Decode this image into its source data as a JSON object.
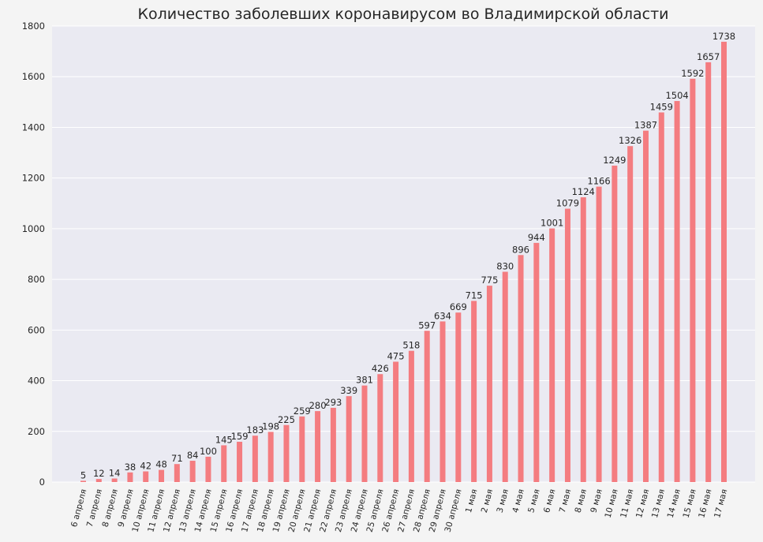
{
  "chart_data": {
    "type": "bar",
    "title": "Количество заболевших коронавирусом во Владимирской области",
    "xlabel": "",
    "ylabel": "",
    "ylim": [
      0,
      1800
    ],
    "yticks": [
      0,
      200,
      400,
      600,
      800,
      1000,
      1200,
      1400,
      1600,
      1800
    ],
    "grid": true,
    "categories": [
      "6 апреля",
      "7 апреля",
      "8 апреля",
      "9 апреля",
      "10 апреля",
      "11 апреля",
      "12 апреля",
      "13 апреля",
      "14 апреля",
      "15 апреля",
      "16 апреля",
      "17 апреля",
      "18 апреля",
      "19 апреля",
      "20 апреля",
      "21 апреля",
      "22 апреля",
      "23 апреля",
      "24 апреля",
      "25 апреля",
      "26 апреля",
      "27 апреля",
      "28 апреля",
      "29 апреля",
      "30 апреля",
      "1 мая",
      "2 мая",
      "3 мая",
      "4 мая",
      "5 мая",
      "6 мая",
      "7 мая",
      "8 мая",
      "9 мая",
      "10 мая",
      "11 мая",
      "12 мая",
      "13 мая",
      "14 мая",
      "15 мая",
      "16 мая",
      "17 мая"
    ],
    "values": [
      5,
      12,
      14,
      38,
      42,
      48,
      71,
      84,
      100,
      145,
      159,
      183,
      198,
      225,
      259,
      280,
      293,
      339,
      381,
      426,
      475,
      518,
      597,
      634,
      669,
      715,
      775,
      830,
      896,
      944,
      1001,
      1079,
      1124,
      1166,
      1249,
      1326,
      1387,
      1459,
      1504,
      1592,
      1657,
      1738
    ],
    "colors": {
      "bar": "#f47c80",
      "plot_bg": "#eaeaf2",
      "grid": "#ffffff",
      "page_bg": "#f4f4f4",
      "text": "#262626"
    }
  }
}
